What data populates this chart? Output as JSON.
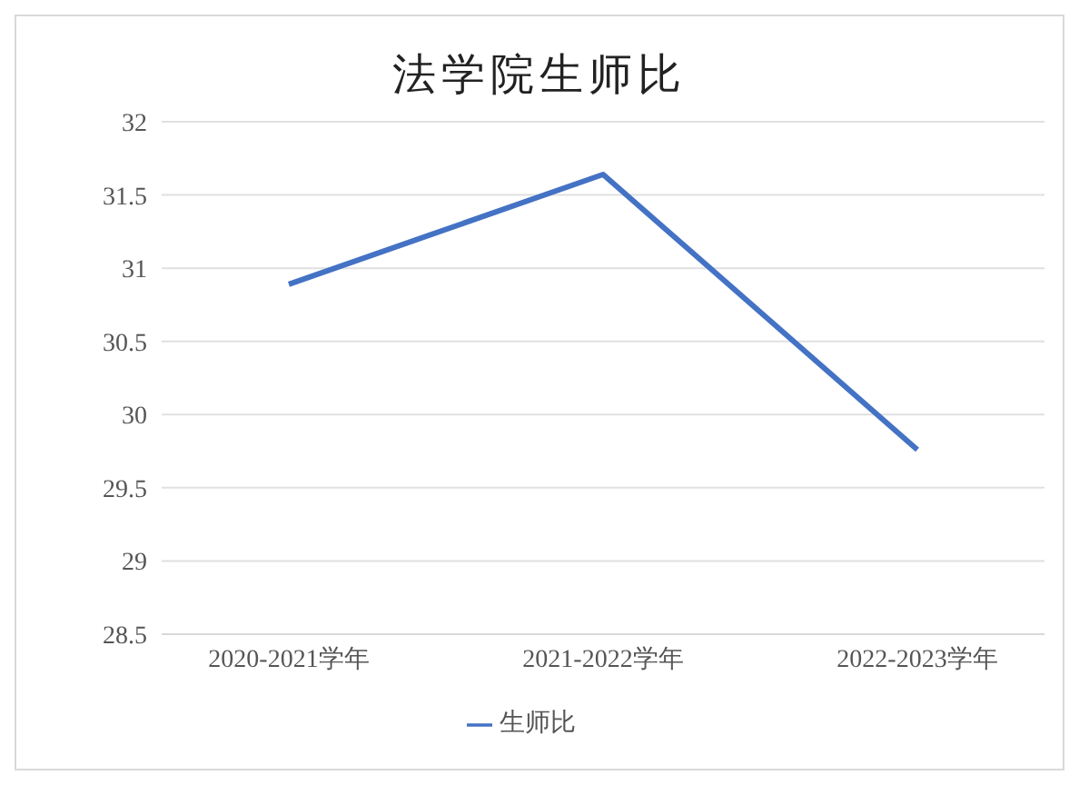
{
  "chart_data": {
    "type": "line",
    "title": "法学院生师比",
    "categories": [
      "2020-2021学年",
      "2021-2022学年",
      "2022-2023学年"
    ],
    "series": [
      {
        "name": "生师比",
        "color": "#4472c4",
        "values": [
          30.89,
          31.64,
          29.76
        ]
      }
    ],
    "ylim": [
      28.5,
      32
    ],
    "yticks": [
      28.5,
      29,
      29.5,
      30,
      30.5,
      31,
      31.5,
      32
    ],
    "grid": "y",
    "legend": "bottom",
    "marker": "none",
    "line_style": "solid"
  }
}
